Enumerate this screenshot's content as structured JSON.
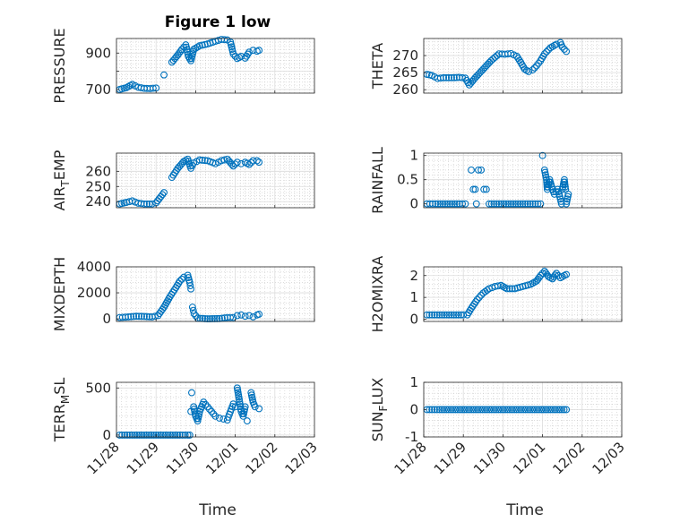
{
  "figure": {
    "title": "Figure 1 low",
    "marker_color": "#0072BD"
  },
  "x_ticks": [
    "11/28",
    "11/29",
    "11/30",
    "12/01",
    "12/02",
    "12/03"
  ],
  "chart_data": [
    {
      "type": "scatter",
      "title": "Figure 1 low",
      "ylabel": "PRESSURE",
      "xlim": [
        0,
        5
      ],
      "ylim": [
        680,
        980
      ],
      "yticks": [
        700,
        800,
        900
      ],
      "ytick_labels": [
        "700",
        "",
        "900"
      ],
      "x_tick_labels_shown": false,
      "series": [
        {
          "points": [
            [
              0.08,
              700
            ],
            [
              0.25,
              710
            ],
            [
              0.4,
              728
            ],
            [
              0.55,
              712
            ],
            [
              0.7,
              706
            ],
            [
              0.85,
              705
            ],
            [
              1.0,
              708
            ],
            [
              1.2,
              780
            ],
            [
              1.4,
              850
            ],
            [
              1.55,
              890
            ],
            [
              1.65,
              920
            ],
            [
              1.75,
              945
            ],
            [
              1.82,
              880
            ],
            [
              1.88,
              858
            ],
            [
              1.95,
              920
            ],
            [
              2.1,
              940
            ],
            [
              2.3,
              950
            ],
            [
              2.5,
              965
            ],
            [
              2.65,
              975
            ],
            [
              2.8,
              972
            ],
            [
              2.88,
              960
            ],
            [
              2.95,
              895
            ],
            [
              3.05,
              870
            ],
            [
              3.15,
              882
            ],
            [
              3.25,
              872
            ],
            [
              3.35,
              905
            ],
            [
              3.45,
              915
            ],
            [
              3.55,
              910
            ],
            [
              3.6,
              915
            ]
          ]
        }
      ]
    },
    {
      "type": "scatter",
      "ylabel": "THETA",
      "xlim": [
        0,
        5
      ],
      "ylim": [
        259,
        275
      ],
      "yticks": [
        260,
        265,
        270
      ],
      "ytick_labels": [
        "260",
        "265",
        "270"
      ],
      "x_tick_labels_shown": false,
      "series": [
        {
          "points": [
            [
              0.08,
              264.5
            ],
            [
              0.2,
              264.2
            ],
            [
              0.35,
              263.3
            ],
            [
              0.5,
              263.5
            ],
            [
              0.7,
              263.5
            ],
            [
              0.9,
              263.6
            ],
            [
              1.05,
              263.4
            ],
            [
              1.15,
              261.4
            ],
            [
              1.3,
              263.5
            ],
            [
              1.5,
              266
            ],
            [
              1.7,
              268.5
            ],
            [
              1.9,
              270.5
            ],
            [
              2.05,
              270.4
            ],
            [
              2.2,
              270.6
            ],
            [
              2.35,
              269.8
            ],
            [
              2.45,
              268
            ],
            [
              2.55,
              266
            ],
            [
              2.65,
              265.3
            ],
            [
              2.75,
              265.8
            ],
            [
              2.85,
              267
            ],
            [
              2.95,
              268.5
            ],
            [
              3.05,
              270.5
            ],
            [
              3.2,
              272.3
            ],
            [
              3.35,
              273.3
            ],
            [
              3.45,
              273.8
            ],
            [
              3.5,
              272.5
            ],
            [
              3.6,
              271.2
            ]
          ]
        }
      ]
    },
    {
      "type": "scatter",
      "ylabel": "AIR_TEMP",
      "xlim": [
        0,
        5
      ],
      "ylim": [
        236,
        272
      ],
      "yticks": [
        240,
        250,
        260
      ],
      "ytick_labels": [
        "240",
        "250",
        "260"
      ],
      "x_tick_labels_shown": false,
      "series": [
        {
          "points": [
            [
              0.08,
              238.5
            ],
            [
              0.25,
              239.5
            ],
            [
              0.4,
              240.5
            ],
            [
              0.55,
              239
            ],
            [
              0.7,
              238.5
            ],
            [
              0.9,
              238.5
            ],
            [
              1.0,
              239.2
            ],
            [
              1.2,
              246
            ],
            [
              1.4,
              256
            ],
            [
              1.55,
              262
            ],
            [
              1.7,
              266.5
            ],
            [
              1.8,
              268
            ],
            [
              1.88,
              262
            ],
            [
              1.95,
              265.5
            ],
            [
              2.1,
              267.5
            ],
            [
              2.3,
              267
            ],
            [
              2.5,
              265
            ],
            [
              2.65,
              267
            ],
            [
              2.8,
              268
            ],
            [
              2.95,
              263.5
            ],
            [
              3.05,
              266
            ],
            [
              3.15,
              265
            ],
            [
              3.25,
              266
            ],
            [
              3.35,
              264.5
            ],
            [
              3.45,
              267
            ],
            [
              3.55,
              267
            ],
            [
              3.6,
              266
            ]
          ]
        }
      ]
    },
    {
      "type": "scatter",
      "ylabel": "RAINFALL",
      "xlim": [
        0,
        5
      ],
      "ylim": [
        -0.08,
        1.05
      ],
      "yticks": [
        0,
        0.5,
        1
      ],
      "ytick_labels": [
        "0",
        "0.5",
        "1"
      ],
      "x_tick_labels_shown": false,
      "series": [
        {
          "points": [
            [
              0.08,
              0
            ],
            [
              0.3,
              0
            ],
            [
              0.6,
              0
            ],
            [
              0.9,
              0
            ],
            [
              1.05,
              0
            ],
            [
              1.2,
              0.7
            ],
            [
              1.25,
              0.3
            ],
            [
              1.3,
              0.3
            ],
            [
              1.33,
              0
            ],
            [
              1.38,
              0.7
            ],
            [
              1.45,
              0.7
            ],
            [
              1.52,
              0.3
            ],
            [
              1.58,
              0.3
            ],
            [
              1.65,
              0
            ],
            [
              1.9,
              0
            ],
            [
              2.2,
              0
            ],
            [
              2.5,
              0
            ],
            [
              2.75,
              0
            ],
            [
              2.95,
              0
            ],
            [
              3.0,
              1.0
            ],
            [
              3.05,
              0.7
            ],
            [
              3.1,
              0.5
            ],
            [
              3.12,
              0.3
            ],
            [
              3.18,
              0.5
            ],
            [
              3.25,
              0.3
            ],
            [
              3.3,
              0.2
            ],
            [
              3.38,
              0.3
            ],
            [
              3.42,
              0.2
            ],
            [
              3.48,
              0
            ],
            [
              3.5,
              0.3
            ],
            [
              3.55,
              0.5
            ],
            [
              3.58,
              0.3
            ],
            [
              3.6,
              0
            ],
            [
              3.65,
              0.2
            ]
          ]
        }
      ]
    },
    {
      "type": "scatter",
      "ylabel": "MIXDEPTH",
      "xlim": [
        0,
        5
      ],
      "ylim": [
        -200,
        4000
      ],
      "yticks": [
        0,
        2000,
        4000
      ],
      "ytick_labels": [
        "0",
        "2000",
        "4000"
      ],
      "x_tick_labels_shown": false,
      "series": [
        {
          "points": [
            [
              0.08,
              100
            ],
            [
              0.3,
              150
            ],
            [
              0.5,
              200
            ],
            [
              0.7,
              180
            ],
            [
              0.9,
              150
            ],
            [
              1.05,
              250
            ],
            [
              1.2,
              900
            ],
            [
              1.35,
              1700
            ],
            [
              1.5,
              2400
            ],
            [
              1.6,
              2900
            ],
            [
              1.7,
              3200
            ],
            [
              1.8,
              3350
            ],
            [
              1.85,
              2800
            ],
            [
              1.88,
              2300
            ],
            [
              1.92,
              900
            ],
            [
              1.96,
              400
            ],
            [
              2.05,
              50
            ],
            [
              2.3,
              0
            ],
            [
              2.6,
              20
            ],
            [
              2.8,
              100
            ],
            [
              2.95,
              100
            ],
            [
              3.05,
              250
            ],
            [
              3.15,
              300
            ],
            [
              3.25,
              200
            ],
            [
              3.35,
              250
            ],
            [
              3.45,
              150
            ],
            [
              3.55,
              300
            ],
            [
              3.6,
              350
            ]
          ]
        }
      ]
    },
    {
      "type": "scatter",
      "ylabel": "H2OMIXRA",
      "xlim": [
        0,
        5
      ],
      "ylim": [
        -0.1,
        2.4
      ],
      "yticks": [
        0,
        1,
        2
      ],
      "ytick_labels": [
        "0",
        "1",
        "2"
      ],
      "x_tick_labels_shown": false,
      "series": [
        {
          "points": [
            [
              0.08,
              0.2
            ],
            [
              0.4,
              0.2
            ],
            [
              0.7,
              0.2
            ],
            [
              1.0,
              0.2
            ],
            [
              1.1,
              0.2
            ],
            [
              1.2,
              0.5
            ],
            [
              1.35,
              0.9
            ],
            [
              1.5,
              1.2
            ],
            [
              1.65,
              1.4
            ],
            [
              1.8,
              1.5
            ],
            [
              1.95,
              1.55
            ],
            [
              2.1,
              1.4
            ],
            [
              2.3,
              1.4
            ],
            [
              2.5,
              1.5
            ],
            [
              2.7,
              1.6
            ],
            [
              2.85,
              1.75
            ],
            [
              2.95,
              2.0
            ],
            [
              3.05,
              2.2
            ],
            [
              3.15,
              1.95
            ],
            [
              3.25,
              1.85
            ],
            [
              3.35,
              2.1
            ],
            [
              3.45,
              1.9
            ],
            [
              3.55,
              2.0
            ],
            [
              3.6,
              2.05
            ]
          ]
        }
      ]
    },
    {
      "type": "scatter",
      "ylabel": "TERR_MSL",
      "xlim": [
        0,
        5
      ],
      "ylim": [
        -20,
        560
      ],
      "yticks": [
        0,
        500
      ],
      "ytick_labels": [
        "0",
        "500"
      ],
      "x_tick_labels_shown": true,
      "series": [
        {
          "points": [
            [
              0.08,
              0
            ],
            [
              0.4,
              0
            ],
            [
              0.7,
              0
            ],
            [
              1.0,
              0
            ],
            [
              1.3,
              0
            ],
            [
              1.6,
              0
            ],
            [
              1.8,
              0
            ],
            [
              1.85,
              0
            ],
            [
              1.88,
              250
            ],
            [
              1.9,
              450
            ],
            [
              1.95,
              300
            ],
            [
              2.0,
              200
            ],
            [
              2.05,
              150
            ],
            [
              2.1,
              250
            ],
            [
              2.2,
              350
            ],
            [
              2.3,
              300
            ],
            [
              2.4,
              250
            ],
            [
              2.5,
              200
            ],
            [
              2.6,
              180
            ],
            [
              2.7,
              170
            ],
            [
              2.8,
              160
            ],
            [
              2.85,
              220
            ],
            [
              2.95,
              330
            ],
            [
              3.0,
              300
            ],
            [
              3.05,
              500
            ],
            [
              3.1,
              380
            ],
            [
              3.15,
              250
            ],
            [
              3.2,
              200
            ],
            [
              3.25,
              300
            ],
            [
              3.3,
              150
            ],
            [
              3.4,
              450
            ],
            [
              3.45,
              350
            ],
            [
              3.5,
              300
            ],
            [
              3.6,
              280
            ]
          ]
        }
      ]
    },
    {
      "type": "scatter",
      "ylabel": "SUN_FLUX",
      "xlim": [
        0,
        5
      ],
      "ylim": [
        -1,
        1
      ],
      "yticks": [
        -1,
        0,
        1
      ],
      "ytick_labels": [
        "-1",
        "0",
        "1"
      ],
      "x_tick_labels_shown": true,
      "series": [
        {
          "points": [
            [
              0.08,
              0
            ],
            [
              0.4,
              0
            ],
            [
              0.8,
              0
            ],
            [
              1.2,
              0
            ],
            [
              1.6,
              0
            ],
            [
              2.0,
              0
            ],
            [
              2.4,
              0
            ],
            [
              2.8,
              0
            ],
            [
              3.2,
              0
            ],
            [
              3.6,
              0
            ]
          ]
        }
      ]
    }
  ],
  "ylabels": [
    {
      "base": "PRESSURE",
      "sub": "",
      "rest": ""
    },
    {
      "base": "THETA",
      "sub": "",
      "rest": ""
    },
    {
      "base": "AIR",
      "sub": "T",
      "rest": "EMP"
    },
    {
      "base": "RAINFALL",
      "sub": "",
      "rest": ""
    },
    {
      "base": "MIXDEPTH",
      "sub": "",
      "rest": ""
    },
    {
      "base": "H2OMIXRA",
      "sub": "",
      "rest": ""
    },
    {
      "base": "TERR",
      "sub": "M",
      "rest": "SL"
    },
    {
      "base": "SUN",
      "sub": "F",
      "rest": "LUX"
    }
  ],
  "xlabel": "Time"
}
